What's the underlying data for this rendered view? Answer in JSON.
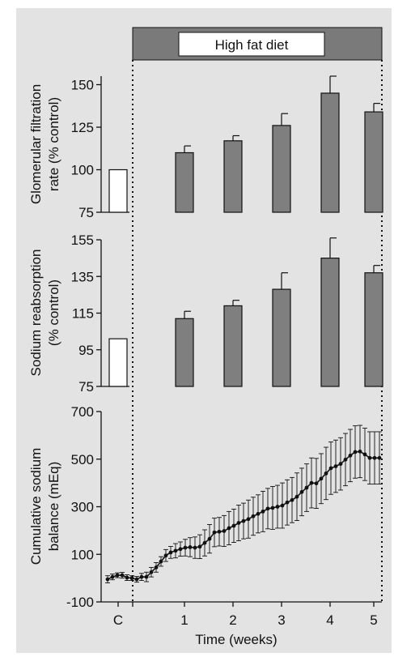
{
  "colors": {
    "panel_background": "#e3e3e3",
    "banner_fill": "#7a7a7a",
    "bar_fill": "#7f7f7f",
    "control_bar_fill": "#ffffff",
    "ink": "#111111"
  },
  "banner": {
    "label": "High fat diet"
  },
  "chart_data": [
    {
      "type": "bar",
      "ylabel": [
        "Glomerular filtration",
        "rate (% control)"
      ],
      "ylim": [
        75,
        155
      ],
      "yticks": [
        75,
        100,
        125,
        150
      ],
      "categories": [
        "C",
        "1",
        "2",
        "3",
        "4",
        "5"
      ],
      "values": [
        100,
        110,
        117,
        126,
        145,
        134
      ],
      "errors": [
        0,
        4,
        3,
        7,
        10,
        5
      ]
    },
    {
      "type": "bar",
      "ylabel": [
        "Sodium reabsorption",
        "(% control)"
      ],
      "ylim": [
        75,
        155
      ],
      "yticks": [
        75,
        95,
        115,
        135,
        155
      ],
      "categories": [
        "C",
        "1",
        "2",
        "3",
        "4",
        "5"
      ],
      "values": [
        101,
        112,
        119,
        128,
        145,
        137
      ],
      "errors": [
        0,
        4,
        3,
        9,
        11,
        4
      ]
    },
    {
      "type": "line",
      "ylabel": [
        "Cumulative sodium",
        "balance (mEq)"
      ],
      "xlabel": "Time (weeks)",
      "ylim": [
        -100,
        700
      ],
      "yticks": [
        -100,
        100,
        300,
        500,
        700
      ],
      "xtick_labels": [
        "C",
        "1",
        "2",
        "3",
        "4",
        "5"
      ],
      "x": [
        -0.6,
        -0.5,
        -0.4,
        -0.3,
        -0.2,
        -0.1,
        0.0,
        0.1,
        0.2,
        0.3,
        0.4,
        0.5,
        0.6,
        0.7,
        0.8,
        0.9,
        1.0,
        1.1,
        1.2,
        1.3,
        1.4,
        1.5,
        1.6,
        1.7,
        1.8,
        1.9,
        2.0,
        2.1,
        2.2,
        2.3,
        2.4,
        2.5,
        2.6,
        2.7,
        2.8,
        2.9,
        3.0,
        3.1,
        3.2,
        3.3,
        3.4,
        3.5,
        3.6,
        3.7,
        3.8,
        3.9,
        4.0,
        4.1,
        4.2,
        4.3,
        4.4,
        4.5,
        4.6,
        4.7,
        4.8,
        4.9,
        5.0
      ],
      "y": [
        -5,
        5,
        12,
        12,
        2,
        0,
        -5,
        5,
        5,
        25,
        45,
        70,
        95,
        108,
        115,
        122,
        128,
        130,
        128,
        132,
        148,
        165,
        192,
        195,
        198,
        210,
        220,
        232,
        240,
        248,
        260,
        270,
        280,
        292,
        295,
        300,
        305,
        318,
        328,
        342,
        362,
        380,
        400,
        398,
        418,
        440,
        462,
        470,
        480,
        498,
        515,
        530,
        532,
        520,
        505,
        505,
        505
      ],
      "errors": [
        15,
        12,
        10,
        12,
        12,
        10,
        12,
        15,
        20,
        20,
        20,
        20,
        25,
        25,
        30,
        30,
        35,
        40,
        45,
        50,
        55,
        60,
        60,
        60,
        65,
        70,
        70,
        75,
        75,
        80,
        80,
        80,
        85,
        85,
        90,
        90,
        95,
        95,
        95,
        100,
        100,
        100,
        105,
        105,
        105,
        110,
        110,
        110,
        110,
        110,
        110,
        110,
        110,
        110,
        110,
        110,
        110
      ]
    }
  ]
}
